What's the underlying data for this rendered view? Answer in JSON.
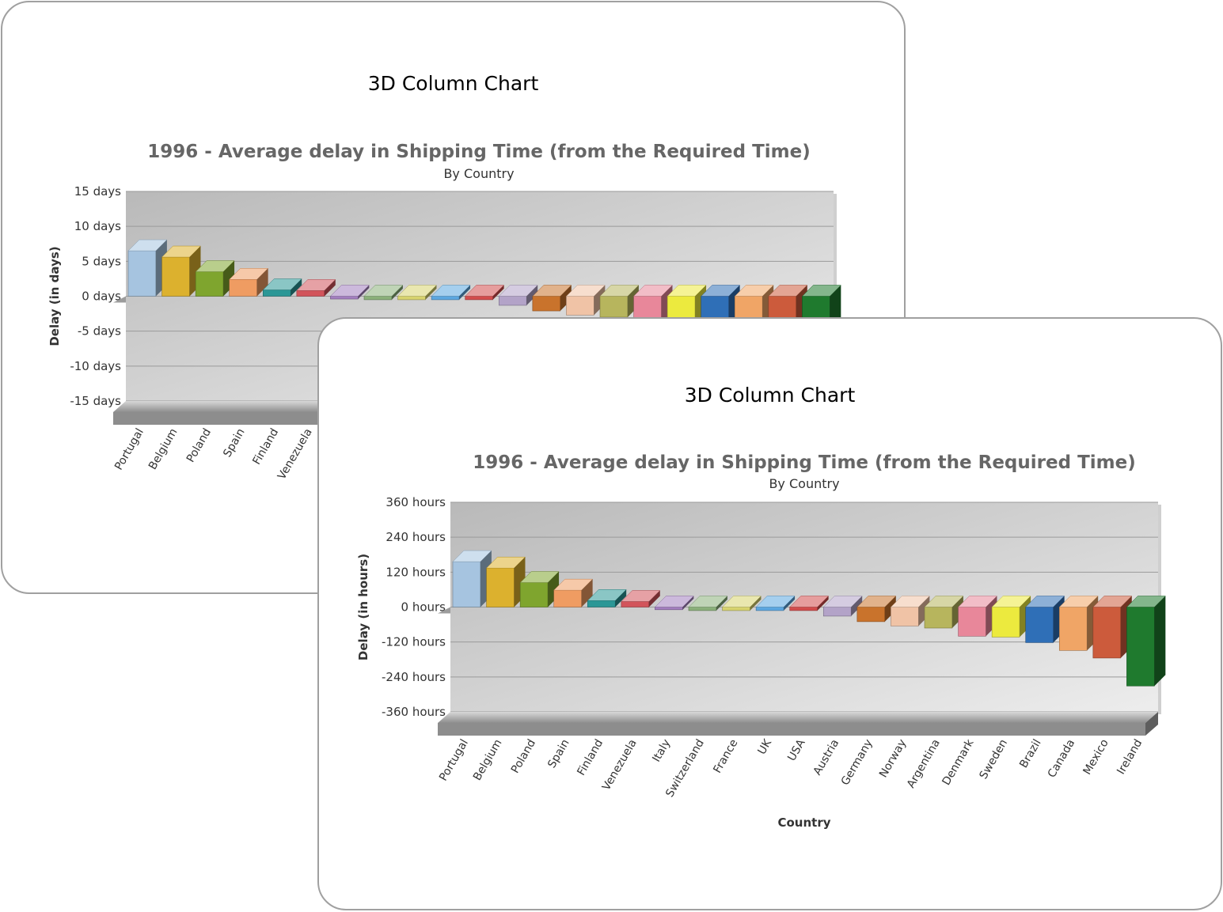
{
  "panels": [
    {
      "heading": "3D Column Chart",
      "chart_data": {
        "type": "bar",
        "title": "1996 - Average delay in Shipping Time (from the Required Time)",
        "subtitle": "By Country",
        "xlabel": "",
        "ylabel": "Delay (in days)",
        "ylim": [
          -15,
          15
        ],
        "y_ticks": [
          15,
          10,
          5,
          0,
          -5,
          -10,
          -15
        ],
        "y_tick_labels": [
          "15 days",
          "10 days",
          "5 days",
          "0 days",
          "-5 days",
          "-10 days",
          "-15 days"
        ],
        "categories": [
          "Portugal",
          "Belgium",
          "Poland",
          "Spain",
          "Finland",
          "Venezuela",
          "Italy",
          "Switzerland",
          "France",
          "UK",
          "USA",
          "Austria",
          "Germany",
          "Norway",
          "Argentina",
          "Denmark",
          "Sweden",
          "Brazil",
          "Canada",
          "Mexico",
          "Ireland"
        ],
        "visible_category_labels": 6,
        "values": [
          6.5,
          5.6,
          3.5,
          2.4,
          0.9,
          0.8,
          -0.4,
          -0.5,
          -0.5,
          -0.5,
          -0.5,
          -1.3,
          -2.1,
          -2.7,
          -3.0,
          -4.2,
          -4.3,
          -5.1,
          -6.2,
          -7.3,
          -11.3
        ],
        "grid": true,
        "legend": "none"
      }
    },
    {
      "heading": "3D Column Chart",
      "chart_data": {
        "type": "bar",
        "title": "1996 - Average delay in Shipping Time (from the Required Time)",
        "subtitle": "By Country",
        "xlabel": "Country",
        "ylabel": "Delay (in hours)",
        "ylim": [
          -360,
          360
        ],
        "y_ticks": [
          360,
          240,
          120,
          0,
          -120,
          -240,
          -360
        ],
        "y_tick_labels": [
          "360 hours",
          "240 hours",
          "120 hours",
          "0 hours",
          "-120 hours",
          "-240 hours",
          "-360 hours"
        ],
        "categories": [
          "Portugal",
          "Belgium",
          "Poland",
          "Spain",
          "Finland",
          "Venezuela",
          "Italy",
          "Switzerland",
          "France",
          "UK",
          "USA",
          "Austria",
          "Germany",
          "Norway",
          "Argentina",
          "Denmark",
          "Sweden",
          "Brazil",
          "Canada",
          "Mexico",
          "Ireland"
        ],
        "visible_category_labels": 21,
        "values": [
          156,
          134,
          84,
          58,
          22,
          19,
          -9,
          -12,
          -12,
          -12,
          -12,
          -31,
          -50,
          -65,
          -72,
          -100,
          -103,
          -122,
          -149,
          -175,
          -271
        ],
        "grid": true,
        "legend": "none"
      }
    }
  ],
  "bar_colors": [
    "#a6c4e0",
    "#dcb12e",
    "#7fa52e",
    "#ef9c62",
    "#2b9796",
    "#d2545b",
    "#a37fbf",
    "#8ab07a",
    "#d7d36e",
    "#5ca7e0",
    "#d24c4c",
    "#b3a3c8",
    "#c9732c",
    "#f0c3a6",
    "#b7b55d",
    "#e8879a",
    "#ecea3e",
    "#2f6fb7",
    "#f0a566",
    "#cc5b3c",
    "#1f7a2e"
  ]
}
